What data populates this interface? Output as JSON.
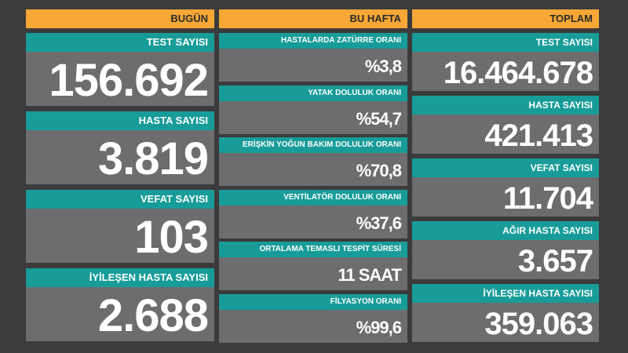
{
  "columns": [
    {
      "title": "BUGÜN",
      "cards": [
        {
          "label": "TEST SAYISI",
          "value": "156.692"
        },
        {
          "label": "HASTA SAYISI",
          "value": "3.819"
        },
        {
          "label": "VEFAT SAYISI",
          "value": "103"
        },
        {
          "label": "İYİLEŞEN HASTA SAYISI",
          "value": "2.688"
        }
      ]
    },
    {
      "title": "BU HAFTA",
      "cards": [
        {
          "label": "HASTALARDA ZATÜRRE ORANI",
          "value": "%3,8"
        },
        {
          "label": "YATAK DOLULUK ORANI",
          "value": "%54,7"
        },
        {
          "label": "ERİŞKİN YOĞUN BAKIM DOLULUK ORANI",
          "value": "%70,8"
        },
        {
          "label": "VENTİLATÖR DOLULUK ORANI",
          "value": "%37,6"
        },
        {
          "label": "ORTALAMA TEMASLI TESPİT SÜRESİ",
          "value": "11 SAAT"
        },
        {
          "label": "FİLYASYON ORANI",
          "value": "%99,6"
        }
      ]
    },
    {
      "title": "TOPLAM",
      "cards": [
        {
          "label": "TEST SAYISI",
          "value": "16.464.678"
        },
        {
          "label": "HASTA SAYISI",
          "value": "421.413"
        },
        {
          "label": "VEFAT SAYISI",
          "value": "11.704"
        },
        {
          "label": "AĞIR HASTA SAYISI",
          "value": "3.657"
        },
        {
          "label": "İYİLEŞEN HASTA SAYISI",
          "value": "359.063"
        }
      ]
    }
  ]
}
